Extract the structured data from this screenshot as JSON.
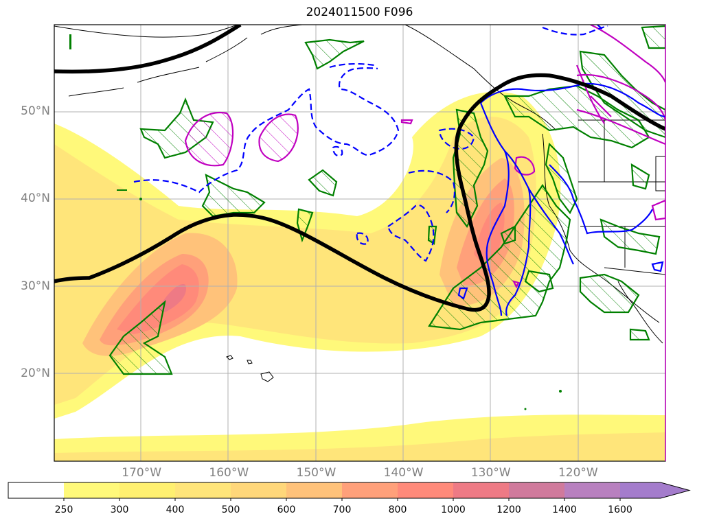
{
  "title": "2024011500 F096",
  "lat_labels": [
    {
      "text": "50°N",
      "lat": 50
    },
    {
      "text": "40°N",
      "lat": 40
    },
    {
      "text": "30°N",
      "lat": 30
    },
    {
      "text": "20°N",
      "lat": 20
    }
  ],
  "lon_labels": [
    {
      "text": "170°W",
      "lon": -170
    },
    {
      "text": "160°W",
      "lon": -160
    },
    {
      "text": "150°W",
      "lon": -150
    },
    {
      "text": "140°W",
      "lon": -140
    },
    {
      "text": "130°W",
      "lon": -130
    },
    {
      "text": "120°W",
      "lon": -120
    }
  ],
  "colorbar": {
    "levels": [
      "250",
      "300",
      "400",
      "500",
      "600",
      "700",
      "800",
      "1000",
      "1200",
      "1400",
      "1600"
    ],
    "colors": [
      "#ffffff",
      "#fff97a",
      "#fff070",
      "#ffe57a",
      "#ffd77a",
      "#ffc27a",
      "#ffa07a",
      "#ff8a7a",
      "#ee7a85",
      "#d07a9c",
      "#b880bf",
      "#a47ccc"
    ]
  },
  "legend_colors": {
    "thick_contour": "#000000",
    "hatched_green": "#008000",
    "dashed_blue": "#0000ff",
    "solid_blue": "#0000ff",
    "magenta": "#c000c0"
  }
}
